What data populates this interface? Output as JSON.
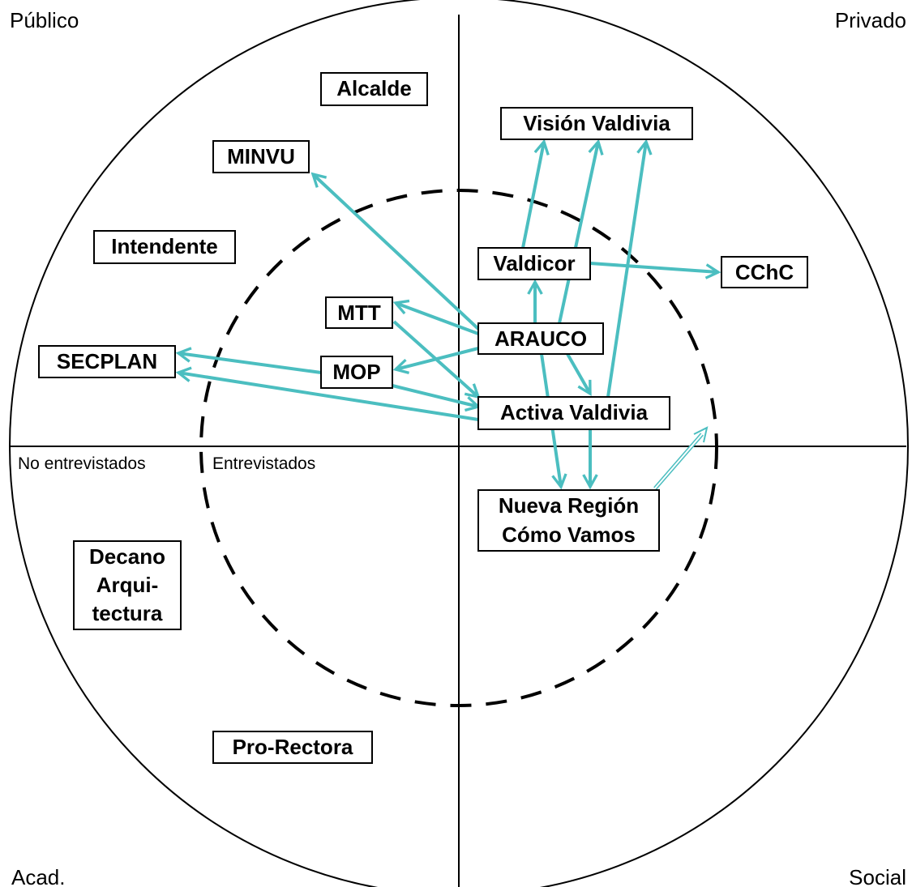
{
  "corners": {
    "top_left": "Público",
    "top_right": "Privado",
    "bottom_left": "Acad.",
    "bottom_right": "Social"
  },
  "rings": {
    "outer": "No entrevistados",
    "inner": "Entrevistados"
  },
  "nodes": [
    {
      "label": "Alcalde"
    },
    {
      "label": "MINVU"
    },
    {
      "label": "Intendente"
    },
    {
      "label": "Visión Valdivia"
    },
    {
      "label": "Valdicor"
    },
    {
      "label": "CChC"
    },
    {
      "label": "MTT"
    },
    {
      "label": "ARAUCO"
    },
    {
      "label": "SECPLAN"
    },
    {
      "label": "MOP"
    },
    {
      "label": "Activa Valdivia"
    },
    {
      "lines": [
        "Nueva Región",
        "Cómo Vamos"
      ]
    },
    {
      "lines": [
        "Decano",
        "Arqui-",
        "tectura"
      ]
    },
    {
      "label": "Pro-Rectora"
    }
  ]
}
